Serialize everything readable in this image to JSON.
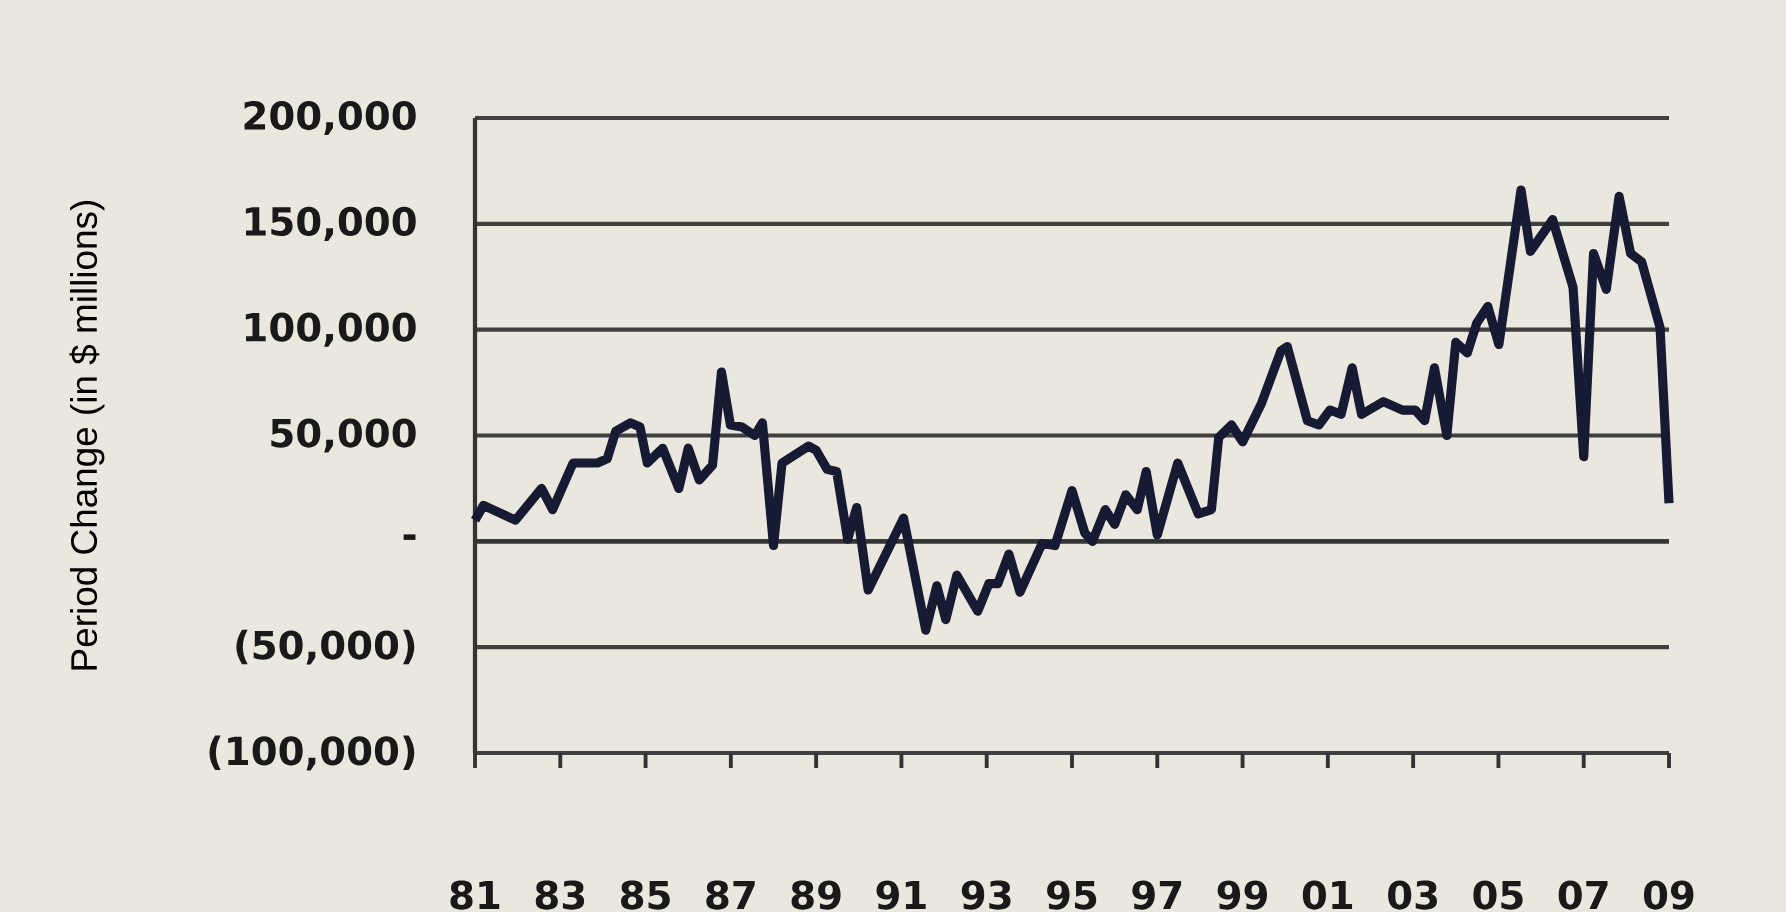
{
  "chart_data": {
    "type": "line",
    "ylabel": "Period Change (in $ millions)",
    "x": [
      1981.0,
      1981.2,
      1981.95,
      1982.56,
      1982.82,
      1983.3,
      1983.87,
      1984.1,
      1984.3,
      1984.65,
      1984.87,
      1985.04,
      1985.4,
      1985.78,
      1986.0,
      1986.26,
      1986.57,
      1986.78,
      1986.99,
      1987.26,
      1987.56,
      1987.74,
      1988.0,
      1988.2,
      1988.82,
      1989.0,
      1989.26,
      1989.48,
      1989.74,
      1989.95,
      1990.22,
      1991.05,
      1991.57,
      1991.83,
      1992.04,
      1992.3,
      1992.79,
      1993.05,
      1993.26,
      1993.52,
      1993.78,
      1994.3,
      1994.6,
      1995.0,
      1995.3,
      1995.48,
      1995.78,
      1996.0,
      1996.26,
      1996.53,
      1996.74,
      1997.0,
      1997.48,
      1997.96,
      1998.27,
      1998.44,
      1998.74,
      1999.0,
      1999.44,
      1999.9,
      2000.05,
      2000.52,
      2000.79,
      2001.05,
      2001.31,
      2001.57,
      2001.79,
      2002.3,
      2002.75,
      2003.05,
      2003.27,
      2003.5,
      2003.79,
      2004.0,
      2004.27,
      2004.49,
      2004.75,
      2005.01,
      2005.53,
      2005.75,
      2006.27,
      2006.75,
      2007.0,
      2007.23,
      2007.53,
      2007.83,
      2008.1,
      2008.36,
      2008.79,
      2009.0
    ],
    "series": [
      {
        "color": "#161a33",
        "values": [
          10000,
          17000,
          10000,
          25000,
          15000,
          37000,
          37000,
          39000,
          52000,
          56000,
          54000,
          37000,
          44000,
          25000,
          44000,
          29000,
          36000,
          80000,
          55000,
          54000,
          50000,
          56000,
          -2000,
          37000,
          45000,
          43000,
          34000,
          33000,
          1000,
          16000,
          -23000,
          11000,
          -42000,
          -21000,
          -37000,
          -16000,
          -33000,
          -20000,
          -20000,
          -6000,
          -24000,
          -1000,
          -2000,
          24000,
          4000,
          0,
          15000,
          8000,
          22000,
          15000,
          33000,
          3000,
          37000,
          13000,
          15000,
          49000,
          55000,
          47000,
          65000,
          90000,
          92000,
          57000,
          55000,
          62000,
          60000,
          82000,
          60000,
          66000,
          62000,
          62000,
          57000,
          82000,
          50000,
          94000,
          89000,
          103000,
          111000,
          93000,
          166000,
          137000,
          152000,
          120000,
          40000,
          136000,
          119000,
          163000,
          136000,
          132000,
          101000,
          18000
        ]
      }
    ],
    "xlim": [
      1981,
      2009
    ],
    "ylim": [
      -100000,
      200000
    ],
    "xticks": [
      {
        "value": 1981,
        "label": "81"
      },
      {
        "value": 1983,
        "label": "83"
      },
      {
        "value": 1985,
        "label": "85"
      },
      {
        "value": 1987,
        "label": "87"
      },
      {
        "value": 1989,
        "label": "89"
      },
      {
        "value": 1991,
        "label": "91"
      },
      {
        "value": 1993,
        "label": "93"
      },
      {
        "value": 1995,
        "label": "95"
      },
      {
        "value": 1997,
        "label": "97"
      },
      {
        "value": 1999,
        "label": "99"
      },
      {
        "value": 2001,
        "label": "01"
      },
      {
        "value": 2003,
        "label": "03"
      },
      {
        "value": 2005,
        "label": "05"
      },
      {
        "value": 2007,
        "label": "07"
      },
      {
        "value": 2009,
        "label": "09"
      }
    ],
    "yticks": [
      {
        "value": -100000,
        "label": "(100,000)"
      },
      {
        "value": -50000,
        "label": "(50,000)"
      },
      {
        "value": 0,
        "label": "-"
      },
      {
        "value": 50000,
        "label": "50,000"
      },
      {
        "value": 100000,
        "label": "100,000"
      },
      {
        "value": 150000,
        "label": "150,000"
      },
      {
        "value": 200000,
        "label": "200,000"
      }
    ],
    "grid": "y",
    "marker": "none",
    "line_style": "solid"
  }
}
